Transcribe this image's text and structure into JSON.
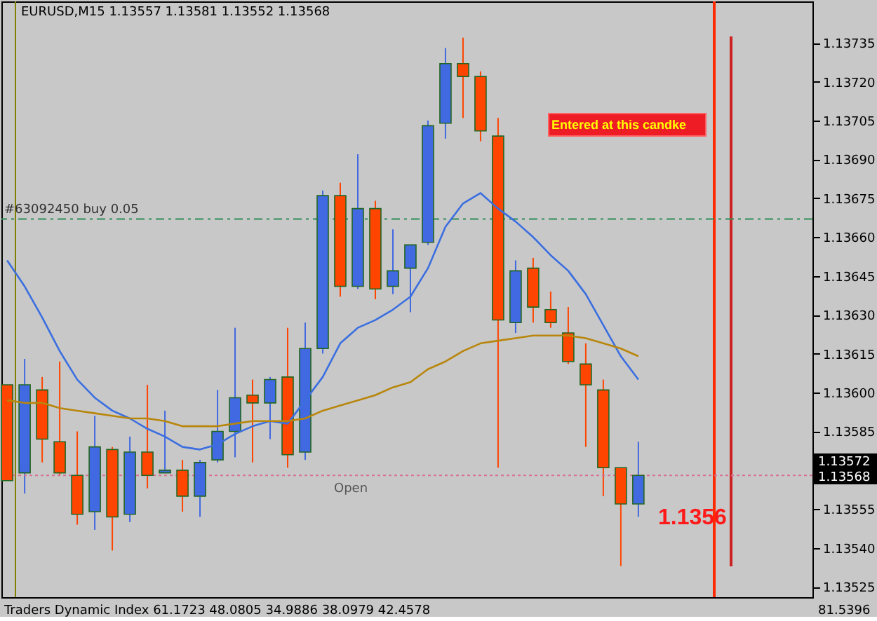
{
  "chart_data": {
    "type": "candlestick",
    "title": "EURUSD,M15 1.13557 1.13581 1.13552 1.13568",
    "categories": [
      null,
      null,
      null,
      null,
      null,
      null,
      null,
      null,
      null,
      null,
      null,
      null,
      null,
      null,
      null,
      null,
      null,
      null,
      null,
      null,
      null,
      null,
      null,
      null,
      null,
      null,
      null,
      null,
      null,
      null,
      null,
      null,
      null,
      null,
      null,
      null,
      null
    ],
    "ohlc": [
      [
        1.13603,
        1.13603,
        1.13566,
        1.13566
      ],
      [
        1.13569,
        1.13613,
        1.13561,
        1.13603
      ],
      [
        1.13601,
        1.13606,
        1.13573,
        1.13582
      ],
      [
        1.13581,
        1.13612,
        1.13568,
        1.13569
      ],
      [
        1.13568,
        1.13585,
        1.13549,
        1.13553
      ],
      [
        1.13554,
        1.13591,
        1.13547,
        1.13579
      ],
      [
        1.13578,
        1.13579,
        1.13539,
        1.13552
      ],
      [
        1.13553,
        1.13583,
        1.1355,
        1.13577
      ],
      [
        1.13577,
        1.13603,
        1.13563,
        1.13568
      ],
      [
        1.13569,
        1.13593,
        1.13569,
        1.1357
      ],
      [
        1.1357,
        1.13574,
        1.13554,
        1.1356
      ],
      [
        1.1356,
        1.13574,
        1.13552,
        1.13573
      ],
      [
        1.13574,
        1.13601,
        1.13573,
        1.13585
      ],
      [
        1.13585,
        1.13625,
        1.13575,
        1.13598
      ],
      [
        1.13599,
        1.13605,
        1.13573,
        1.13596
      ],
      [
        1.13596,
        1.13606,
        1.13582,
        1.13605
      ],
      [
        1.13606,
        1.13625,
        1.13571,
        1.13576
      ],
      [
        1.13577,
        1.13627,
        1.13574,
        1.13617
      ],
      [
        1.13617,
        1.13678,
        1.13615,
        1.13676
      ],
      [
        1.13676,
        1.13681,
        1.13637,
        1.13641
      ],
      [
        1.13641,
        1.13692,
        1.1364,
        1.13671
      ],
      [
        1.13671,
        1.13674,
        1.13636,
        1.1364
      ],
      [
        1.13641,
        1.13663,
        1.13638,
        1.13647
      ],
      [
        1.13648,
        1.13657,
        1.13631,
        1.13657
      ],
      [
        1.13658,
        1.13705,
        1.13657,
        1.13703
      ],
      [
        1.13704,
        1.13733,
        1.13698,
        1.13727
      ],
      [
        1.13727,
        1.13737,
        1.13706,
        1.13722
      ],
      [
        1.13722,
        1.13724,
        1.13697,
        1.13701
      ],
      [
        1.13699,
        1.13706,
        1.13571,
        1.13628
      ],
      [
        1.13627,
        1.13651,
        1.13623,
        1.13647
      ],
      [
        1.13648,
        1.13652,
        1.13627,
        1.13633
      ],
      [
        1.13632,
        1.13639,
        1.13625,
        1.13627
      ],
      [
        1.13623,
        1.13633,
        1.13611,
        1.13612
      ],
      [
        1.13611,
        1.13619,
        1.13579,
        1.13603
      ],
      [
        1.13601,
        1.13605,
        1.1356,
        1.13571
      ],
      [
        1.13571,
        1.13571,
        1.13533,
        1.13557
      ],
      [
        1.13557,
        1.13581,
        1.13552,
        1.13568
      ]
    ],
    "colors": [
      "#ff4500",
      "#4169e1",
      "#ff4500",
      "#ff4500",
      "#ff4500",
      "#4169e1",
      "#ff4500",
      "#4169e1",
      "#ff4500",
      "#4169e1",
      "#ff4500",
      "#4169e1",
      "#4169e1",
      "#4169e1",
      "#ff4500",
      "#4169e1",
      "#ff4500",
      "#4169e1",
      "#4169e1",
      "#ff4500",
      "#4169e1",
      "#ff4500",
      "#4169e1",
      "#4169e1",
      "#4169e1",
      "#4169e1",
      "#ff4500",
      "#ff4500",
      "#ff4500",
      "#4169e1",
      "#ff4500",
      "#ff4500",
      "#ff4500",
      "#ff4500",
      "#ff4500",
      "#ff4500",
      "#4169e1"
    ],
    "series": [
      {
        "type": "line",
        "color": "#3b6fe0",
        "values": [
          1.13651,
          1.13641,
          1.13629,
          1.13616,
          1.13605,
          1.13598,
          1.13593,
          1.1359,
          1.13586,
          1.13583,
          1.13579,
          1.13578,
          1.1358,
          1.13584,
          1.13587,
          1.13589,
          1.13588,
          1.13597,
          1.13606,
          1.13619,
          1.13625,
          1.13628,
          1.13632,
          1.13637,
          1.13648,
          1.13664,
          1.13673,
          1.13677,
          1.13671,
          1.13666,
          1.1366,
          1.13653,
          1.13647,
          1.13638,
          1.13626,
          1.13614,
          1.13605
        ]
      },
      {
        "type": "line",
        "color": "#b8860b",
        "values": [
          1.13597,
          1.13596,
          1.13596,
          1.13594,
          1.13593,
          1.13592,
          1.13591,
          1.1359,
          1.1359,
          1.13589,
          1.13587,
          1.13587,
          1.13587,
          1.13588,
          1.13589,
          1.13589,
          1.13589,
          1.1359,
          1.13593,
          1.13595,
          1.13597,
          1.13599,
          1.13602,
          1.13604,
          1.13609,
          1.13612,
          1.13616,
          1.13619,
          1.1362,
          1.13621,
          1.13622,
          1.13622,
          1.13622,
          1.13621,
          1.13619,
          1.13617,
          1.13614
        ]
      }
    ],
    "ylim": [
      1.13521,
      1.13751
    ],
    "yticks": [
      1.13525,
      {
        "value": 1.1354,
        "label": "1.13540"
      },
      1.13555,
      1.13585,
      {
        "value": 1.136,
        "label": "1.13600"
      },
      1.13615,
      {
        "value": 1.1363,
        "label": "1.13630"
      },
      1.13645,
      {
        "value": 1.1366,
        "label": "1.13660"
      },
      1.13675,
      {
        "value": 1.1369,
        "label": "1.13690"
      },
      1.13705,
      {
        "value": 1.1372,
        "label": "1.13720"
      },
      1.13735
    ],
    "tick_labels": "y",
    "grid": false,
    "line_style": "solid",
    "ref_lines": [
      {
        "axis": "y",
        "value": 1.13667,
        "label": "#63092450 buy 0.05",
        "color": "#2e8b57",
        "line_style": "dashed"
      },
      {
        "axis": "y",
        "value": 1.13568,
        "label": "Open",
        "color": "#d87093",
        "line_style": "dotted"
      }
    ],
    "annotations": [
      "Entered at this candke",
      "Traders Dynamic Index 61.1723 48.0805 34.9886 38.0979 42.4578",
      "81.5396",
      "1.1356",
      "1.13572",
      "1.13568"
    ]
  }
}
